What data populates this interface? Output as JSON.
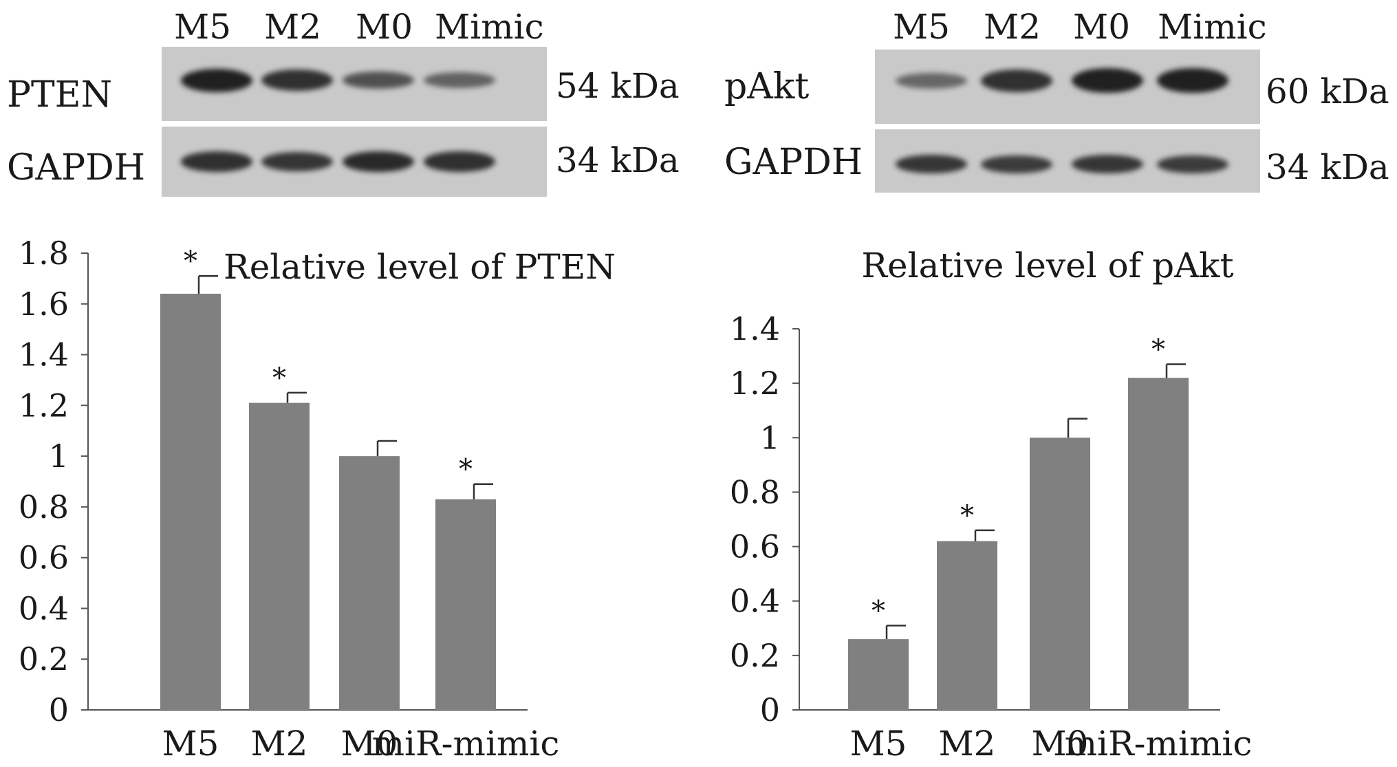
{
  "blots": {
    "left": {
      "lanes": [
        "M5",
        "M2",
        "M0",
        "Mimic"
      ],
      "rows": [
        {
          "label": "PTEN",
          "size": "54 kDa",
          "intensity": [
            1.0,
            0.85,
            0.55,
            0.4
          ]
        },
        {
          "label": "GAPDH",
          "size": "34 kDa",
          "intensity": [
            0.85,
            0.8,
            0.9,
            0.85
          ]
        }
      ]
    },
    "right": {
      "lanes": [
        "M5",
        "M2",
        "M0",
        "Mimic"
      ],
      "rows": [
        {
          "label": "pAkt",
          "size": "60 kDa",
          "intensity": [
            0.35,
            0.85,
            1.0,
            1.0
          ]
        },
        {
          "label": "GAPDH",
          "size": "34 kDa",
          "intensity": [
            0.8,
            0.75,
            0.8,
            0.75
          ]
        }
      ]
    }
  },
  "chart_data": [
    {
      "type": "bar",
      "title": "Relative level of PTEN",
      "categories": [
        "M5",
        "M2",
        "M0",
        "miR-mimic"
      ],
      "values": [
        1.64,
        1.21,
        1.0,
        0.83
      ],
      "errors": [
        0.07,
        0.04,
        0.06,
        0.06
      ],
      "significance": [
        "*",
        "*",
        "",
        "*"
      ],
      "ylim": [
        0,
        1.8
      ],
      "yticks": [
        "0",
        "0.2",
        "0.4",
        "0.6",
        "0.8",
        "1",
        "1.2",
        "1.4",
        "1.6",
        "1.8"
      ],
      "bar_color": "#808080",
      "grid": false
    },
    {
      "type": "bar",
      "title": "Relative level of pAkt",
      "categories": [
        "M5",
        "M2",
        "M0",
        "miR-mimic"
      ],
      "values": [
        0.26,
        0.62,
        1.0,
        1.22
      ],
      "errors": [
        0.05,
        0.04,
        0.07,
        0.05
      ],
      "significance": [
        "*",
        "*",
        "",
        "*"
      ],
      "ylim": [
        0,
        1.4
      ],
      "yticks": [
        "0",
        "0.2",
        "0.4",
        "0.6",
        "0.8",
        "1",
        "1.2",
        "1.4"
      ],
      "bar_color": "#808080",
      "grid": false
    }
  ]
}
